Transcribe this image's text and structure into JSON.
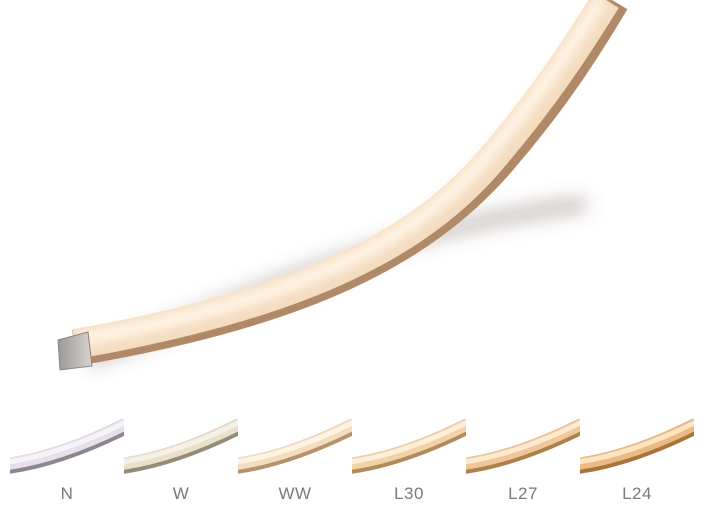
{
  "hero": {
    "colors": {
      "glow": "#fff4e6",
      "core": "#f4dcbf",
      "edge": "#b08a68",
      "shadow": "#6e5a4c"
    }
  },
  "swatches": [
    {
      "label": "N",
      "glow": "#f7f4f9",
      "core": "#e7e0ea",
      "edge": "#8d8590"
    },
    {
      "label": "W",
      "glow": "#f6f1e6",
      "core": "#e9e0cc",
      "edge": "#948a78"
    },
    {
      "label": "WW",
      "glow": "#fff3e3",
      "core": "#f3ddbf",
      "edge": "#b6936d"
    },
    {
      "label": "L30",
      "glow": "#ffeed9",
      "core": "#f1d2a9",
      "edge": "#b38a5a"
    },
    {
      "label": "L27",
      "glow": "#ffe9cf",
      "core": "#eec79a",
      "edge": "#ae804c"
    },
    {
      "label": "L24",
      "glow": "#ffe4c2",
      "core": "#e9ba84",
      "edge": "#a8743c"
    }
  ]
}
